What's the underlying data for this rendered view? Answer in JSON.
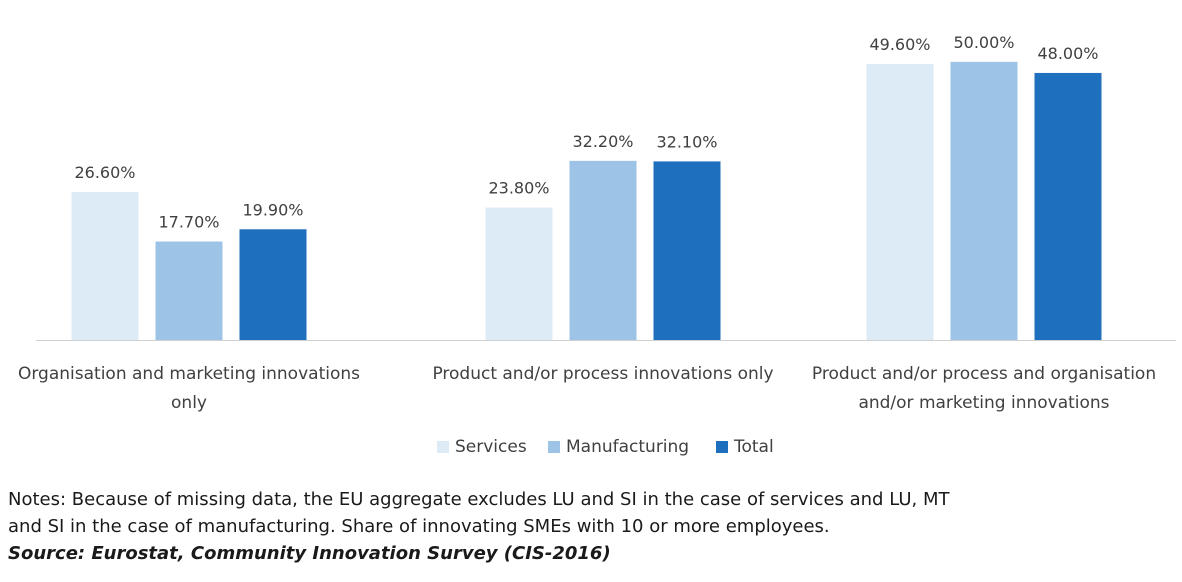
{
  "chart_data": {
    "type": "bar",
    "categories": [
      [
        "Organisation and marketing innovations",
        "only"
      ],
      [
        "Product and/or process innovations only"
      ],
      [
        "Product and/or process and organisation",
        "and/or marketing innovations"
      ]
    ],
    "series": [
      {
        "name": "Services",
        "color": "#DDEBF7",
        "values": [
          26.6,
          23.8,
          49.6
        ],
        "labels": [
          "26.60%",
          "23.80%",
          "49.60%"
        ]
      },
      {
        "name": "Manufacturing",
        "color": "#9DC3E6",
        "values": [
          17.7,
          32.2,
          50.0
        ],
        "labels": [
          "17.70%",
          "32.20%",
          "50.00%"
        ]
      },
      {
        "name": "Total",
        "color": "#1F6FBF",
        "values": [
          19.9,
          32.1,
          48.0
        ],
        "labels": [
          "19.90%",
          "32.10%",
          "48.00%"
        ]
      }
    ],
    "ylim": [
      0,
      55
    ],
    "legend": "bottom",
    "grid": false
  },
  "notes": {
    "line1": "Notes: Because of missing data, the EU aggregate excludes LU and SI in the case of services and LU, MT",
    "line2": "and SI in the case of manufacturing. Share of innovating SMEs with 10 or more employees.",
    "source": "Source: Eurostat, Community Innovation Survey (CIS-2016)"
  }
}
